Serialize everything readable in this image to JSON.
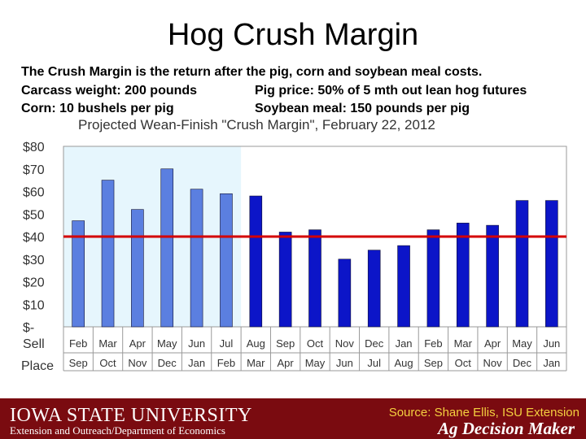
{
  "slide": {
    "title": "Hog Crush Margin",
    "description_line1": "The Crush Margin is the return after the pig, corn and soybean meal costs.",
    "carcass": "Carcass weight:  200 pounds",
    "pig_price": "Pig price:  50% of 5 mth out lean hog futures",
    "corn": "Corn:  10 bushels per pig",
    "soy": "Soybean meal:  150 pounds per pig"
  },
  "footer": {
    "logo": "IOWA STATE UNIVERSITY",
    "sub": "Extension and Outreach/Department of Economics",
    "source": "Source: Shane Ellis, ISU Extension",
    "brand": "Ag Decision Maker"
  },
  "colors": {
    "bar_history": "#5b7fe0",
    "bar_projected": "#0c15c8",
    "highlight_bg": "#e6f6fd",
    "reference_line": "#d40000",
    "footer_bg": "#7a0b10"
  },
  "chart_data": {
    "type": "bar",
    "title": "Projected Wean-Finish \"Crush Margin\", February 22, 2012",
    "row_labels": [
      "Sell",
      "Place"
    ],
    "categories": [
      "Feb",
      "Mar",
      "Apr",
      "May",
      "Jun",
      "Jul",
      "Aug",
      "Sep",
      "Oct",
      "Nov",
      "Dec",
      "Jan",
      "Feb",
      "Mar",
      "Apr",
      "May",
      "Jun"
    ],
    "place_categories": [
      "Sep",
      "Oct",
      "Nov",
      "Dec",
      "Jan",
      "Feb",
      "Mar",
      "Apr",
      "May",
      "Jun",
      "Jul",
      "Aug",
      "Sep",
      "Oct",
      "Nov",
      "Dec",
      "Jan"
    ],
    "values": [
      47,
      65,
      52,
      70,
      61,
      59,
      58,
      42,
      43,
      30,
      34,
      36,
      43,
      46,
      45,
      56,
      56
    ],
    "highlighted_count": 6,
    "reference_value": 40,
    "ylim": [
      0,
      80
    ],
    "yticks": [
      0,
      10,
      20,
      30,
      40,
      50,
      60,
      70,
      80
    ],
    "ytick_labels": [
      "$-",
      "$10",
      "$20",
      "$30",
      "$40",
      "$50",
      "$60",
      "$70",
      "$80"
    ],
    "grid": false
  }
}
